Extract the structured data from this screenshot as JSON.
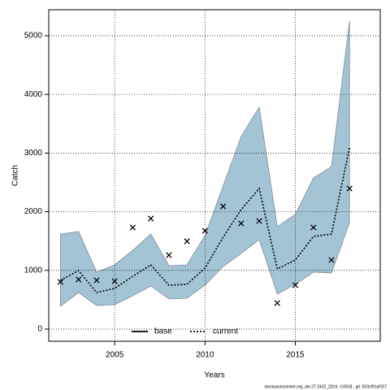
{
  "chart_data": {
    "type": "line",
    "xlabel": "Years",
    "ylabel": "Catch",
    "footer": "stockassessment.org, ple.27.2432_2019, r10918 , git: 503cf91af157",
    "x": [
      2002,
      2003,
      2004,
      2005,
      2006,
      2007,
      2008,
      2009,
      2010,
      2011,
      2012,
      2013,
      2014,
      2015,
      2016,
      2017,
      2018
    ],
    "band": {
      "color": "#a3c4d5",
      "upper": [
        1620,
        1662,
        970,
        1094,
        1343,
        1620,
        1080,
        1094,
        1593,
        2438,
        3283,
        3781,
        1745,
        1953,
        2576,
        2770,
        5249
      ],
      "lower": [
        388,
        623,
        402,
        416,
        568,
        734,
        512,
        526,
        748,
        1066,
        1288,
        1524,
        596,
        762,
        970,
        956,
        1814
      ]
    },
    "observed": [
      803,
      845,
      831,
      817,
      1731,
      1884,
      1260,
      1496,
      1676,
      2091,
      1800,
      1842,
      443,
      748,
      1731,
      1177,
      2396
    ],
    "series": [
      {
        "name": "current",
        "color": "#000000",
        "style": "dotted",
        "values": [
          831,
          997,
          623,
          693,
          900,
          1094,
          748,
          762,
          1039,
          1565,
          2036,
          2396,
          1025,
          1177,
          1579,
          1620,
          3089
        ]
      }
    ],
    "legend": [
      {
        "label": "base",
        "style": "solid"
      },
      {
        "label": "current",
        "style": "dotted"
      }
    ],
    "xlim": [
      2001.35,
      2019.7
    ],
    "ylim": [
      -208,
      5443
    ],
    "xticks": [
      2005,
      2010,
      2015
    ],
    "yticks": [
      0,
      1000,
      2000,
      3000,
      4000,
      5000
    ],
    "grid": true
  }
}
